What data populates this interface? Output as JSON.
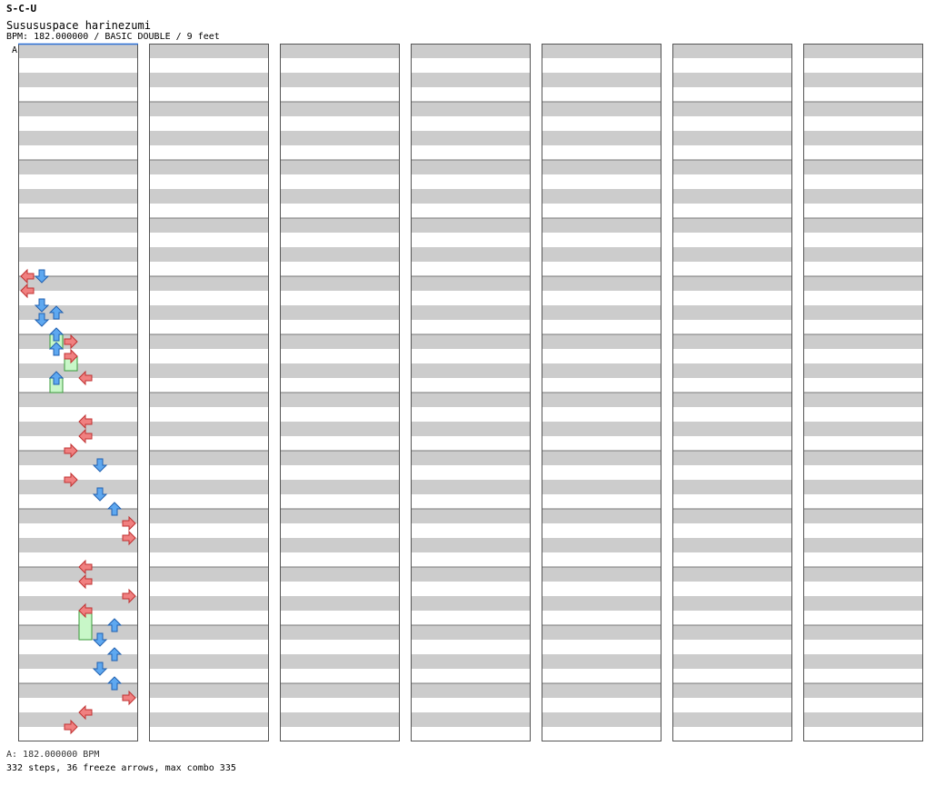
{
  "header": {
    "site": "S-C-U",
    "song": "Susususpace harinezumi",
    "info": "BPM: 182.000000 / BASIC DOUBLE / 9 feet"
  },
  "chart_data": {
    "type": "step-chart",
    "title": "Susususpace harinezumi",
    "bpm": "182.000000",
    "difficulty": "BASIC DOUBLE",
    "feet": 9,
    "marker": "A",
    "measures_per_column": 12,
    "lanes": [
      "L",
      "D",
      "U",
      "R",
      "L",
      "D",
      "U",
      "R"
    ],
    "notes_column_1": [
      {
        "m": 4.0,
        "lane": 0
      },
      {
        "m": 4.0,
        "lane": 1
      },
      {
        "m": 4.25,
        "lane": 0
      },
      {
        "m": 4.5,
        "lane": 1
      },
      {
        "m": 4.625,
        "lane": 2
      },
      {
        "m": 4.75,
        "lane": 1
      },
      {
        "m": 5.0,
        "lane": 2,
        "freeze": 0.25
      },
      {
        "m": 5.125,
        "lane": 3
      },
      {
        "m": 5.25,
        "lane": 2
      },
      {
        "m": 5.375,
        "lane": 3,
        "freeze": 0.25
      },
      {
        "m": 5.75,
        "lane": 2,
        "freeze": 0.25
      },
      {
        "m": 5.75,
        "lane": 4
      },
      {
        "m": 6.5,
        "lane": 4
      },
      {
        "m": 6.75,
        "lane": 4
      },
      {
        "m": 7.0,
        "lane": 3
      },
      {
        "m": 7.25,
        "lane": 5
      },
      {
        "m": 7.5,
        "lane": 3
      },
      {
        "m": 7.75,
        "lane": 5
      },
      {
        "m": 8.0,
        "lane": 6
      },
      {
        "m": 8.25,
        "lane": 7
      },
      {
        "m": 8.5,
        "lane": 7
      },
      {
        "m": 9.0,
        "lane": 4
      },
      {
        "m": 9.25,
        "lane": 4
      },
      {
        "m": 9.5,
        "lane": 7
      },
      {
        "m": 9.75,
        "lane": 4,
        "freeze": 0.5
      },
      {
        "m": 10.0,
        "lane": 6
      },
      {
        "m": 10.25,
        "lane": 5
      },
      {
        "m": 10.5,
        "lane": 6
      },
      {
        "m": 10.75,
        "lane": 5
      },
      {
        "m": 11.0,
        "lane": 6
      },
      {
        "m": 11.25,
        "lane": 7
      },
      {
        "m": 11.5,
        "lane": 4
      },
      {
        "m": 11.75,
        "lane": 3
      }
    ]
  },
  "footer": {
    "bpm_note": "A: 182.000000 BPM",
    "stats": "332 steps, 36 freeze arrows, max combo 335"
  }
}
